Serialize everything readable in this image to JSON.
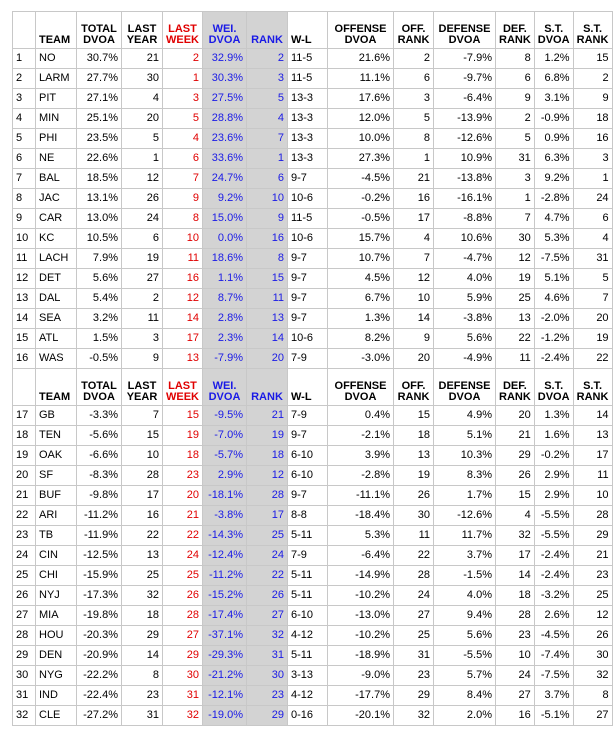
{
  "headers": {
    "rank": "",
    "team": "TEAM",
    "total_dvoa": [
      "TOTAL",
      "DVOA"
    ],
    "last_year": [
      "LAST",
      "YEAR"
    ],
    "last_week": [
      "LAST",
      "WEEK"
    ],
    "wei_dvoa": [
      "WEI.",
      "DVOA"
    ],
    "wei_rank": "RANK",
    "wl": "W-L",
    "offense_dvoa": [
      "OFFENSE",
      "DVOA"
    ],
    "off_rank": [
      "OFF.",
      "RANK"
    ],
    "defense_dvoa": [
      "DEFENSE",
      "DVOA"
    ],
    "def_rank": [
      "DEF.",
      "RANK"
    ],
    "st_dvoa": [
      "S.T.",
      "DVOA"
    ],
    "st_rank": [
      "S.T.",
      "RANK"
    ]
  },
  "colors": {
    "last_week_text": "#e00000",
    "weighted_text": "#1a1ae6",
    "weighted_bg": "#d3d3d3",
    "grid": "#c8c8c8"
  },
  "rows": [
    [
      "1",
      "NO",
      "30.7%",
      "21",
      "2",
      "32.9%",
      "2",
      "11-5",
      "21.6%",
      "2",
      "-7.9%",
      "8",
      "1.2%",
      "15"
    ],
    [
      "2",
      "LARM",
      "27.7%",
      "30",
      "1",
      "30.3%",
      "3",
      "11-5",
      "11.1%",
      "6",
      "-9.7%",
      "6",
      "6.8%",
      "2"
    ],
    [
      "3",
      "PIT",
      "27.1%",
      "4",
      "3",
      "27.5%",
      "5",
      "13-3",
      "17.6%",
      "3",
      "-6.4%",
      "9",
      "3.1%",
      "9"
    ],
    [
      "4",
      "MIN",
      "25.1%",
      "20",
      "5",
      "28.8%",
      "4",
      "13-3",
      "12.0%",
      "5",
      "-13.9%",
      "2",
      "-0.9%",
      "18"
    ],
    [
      "5",
      "PHI",
      "23.5%",
      "5",
      "4",
      "23.6%",
      "7",
      "13-3",
      "10.0%",
      "8",
      "-12.6%",
      "5",
      "0.9%",
      "16"
    ],
    [
      "6",
      "NE",
      "22.6%",
      "1",
      "6",
      "33.6%",
      "1",
      "13-3",
      "27.3%",
      "1",
      "10.9%",
      "31",
      "6.3%",
      "3"
    ],
    [
      "7",
      "BAL",
      "18.5%",
      "12",
      "7",
      "24.7%",
      "6",
      "9-7",
      "-4.5%",
      "21",
      "-13.8%",
      "3",
      "9.2%",
      "1"
    ],
    [
      "8",
      "JAC",
      "13.1%",
      "26",
      "9",
      "9.2%",
      "10",
      "10-6",
      "-0.2%",
      "16",
      "-16.1%",
      "1",
      "-2.8%",
      "24"
    ],
    [
      "9",
      "CAR",
      "13.0%",
      "24",
      "8",
      "15.0%",
      "9",
      "11-5",
      "-0.5%",
      "17",
      "-8.8%",
      "7",
      "4.7%",
      "6"
    ],
    [
      "10",
      "KC",
      "10.5%",
      "6",
      "10",
      "0.0%",
      "16",
      "10-6",
      "15.7%",
      "4",
      "10.6%",
      "30",
      "5.3%",
      "4"
    ],
    [
      "11",
      "LACH",
      "7.9%",
      "19",
      "11",
      "18.6%",
      "8",
      "9-7",
      "10.7%",
      "7",
      "-4.7%",
      "12",
      "-7.5%",
      "31"
    ],
    [
      "12",
      "DET",
      "5.6%",
      "27",
      "16",
      "1.1%",
      "15",
      "9-7",
      "4.5%",
      "12",
      "4.0%",
      "19",
      "5.1%",
      "5"
    ],
    [
      "13",
      "DAL",
      "5.4%",
      "2",
      "12",
      "8.7%",
      "11",
      "9-7",
      "6.7%",
      "10",
      "5.9%",
      "25",
      "4.6%",
      "7"
    ],
    [
      "14",
      "SEA",
      "3.2%",
      "11",
      "14",
      "2.8%",
      "13",
      "9-7",
      "1.3%",
      "14",
      "-3.8%",
      "13",
      "-2.0%",
      "20"
    ],
    [
      "15",
      "ATL",
      "1.5%",
      "3",
      "17",
      "2.3%",
      "14",
      "10-6",
      "8.2%",
      "9",
      "5.6%",
      "22",
      "-1.2%",
      "19"
    ],
    [
      "16",
      "WAS",
      "-0.5%",
      "9",
      "13",
      "-7.9%",
      "20",
      "7-9",
      "-3.0%",
      "20",
      "-4.9%",
      "11",
      "-2.4%",
      "22"
    ],
    [
      "17",
      "GB",
      "-3.3%",
      "7",
      "15",
      "-9.5%",
      "21",
      "7-9",
      "0.4%",
      "15",
      "4.9%",
      "20",
      "1.3%",
      "14"
    ],
    [
      "18",
      "TEN",
      "-5.6%",
      "15",
      "19",
      "-7.0%",
      "19",
      "9-7",
      "-2.1%",
      "18",
      "5.1%",
      "21",
      "1.6%",
      "13"
    ],
    [
      "19",
      "OAK",
      "-6.6%",
      "10",
      "18",
      "-5.7%",
      "18",
      "6-10",
      "3.9%",
      "13",
      "10.3%",
      "29",
      "-0.2%",
      "17"
    ],
    [
      "20",
      "SF",
      "-8.3%",
      "28",
      "23",
      "2.9%",
      "12",
      "6-10",
      "-2.8%",
      "19",
      "8.3%",
      "26",
      "2.9%",
      "11"
    ],
    [
      "21",
      "BUF",
      "-9.8%",
      "17",
      "20",
      "-18.1%",
      "28",
      "9-7",
      "-11.1%",
      "26",
      "1.7%",
      "15",
      "2.9%",
      "10"
    ],
    [
      "22",
      "ARI",
      "-11.2%",
      "16",
      "21",
      "-3.8%",
      "17",
      "8-8",
      "-18.4%",
      "30",
      "-12.6%",
      "4",
      "-5.5%",
      "28"
    ],
    [
      "23",
      "TB",
      "-11.9%",
      "22",
      "22",
      "-14.3%",
      "25",
      "5-11",
      "5.3%",
      "11",
      "11.7%",
      "32",
      "-5.5%",
      "29"
    ],
    [
      "24",
      "CIN",
      "-12.5%",
      "13",
      "24",
      "-12.4%",
      "24",
      "7-9",
      "-6.4%",
      "22",
      "3.7%",
      "17",
      "-2.4%",
      "21"
    ],
    [
      "25",
      "CHI",
      "-15.9%",
      "25",
      "25",
      "-11.2%",
      "22",
      "5-11",
      "-14.9%",
      "28",
      "-1.5%",
      "14",
      "-2.4%",
      "23"
    ],
    [
      "26",
      "NYJ",
      "-17.3%",
      "32",
      "26",
      "-15.2%",
      "26",
      "5-11",
      "-10.2%",
      "24",
      "4.0%",
      "18",
      "-3.2%",
      "25"
    ],
    [
      "27",
      "MIA",
      "-19.8%",
      "18",
      "28",
      "-17.4%",
      "27",
      "6-10",
      "-13.0%",
      "27",
      "9.4%",
      "28",
      "2.6%",
      "12"
    ],
    [
      "28",
      "HOU",
      "-20.3%",
      "29",
      "27",
      "-37.1%",
      "32",
      "4-12",
      "-10.2%",
      "25",
      "5.6%",
      "23",
      "-4.5%",
      "26"
    ],
    [
      "29",
      "DEN",
      "-20.9%",
      "14",
      "29",
      "-29.3%",
      "31",
      "5-11",
      "-18.9%",
      "31",
      "-5.5%",
      "10",
      "-7.4%",
      "30"
    ],
    [
      "30",
      "NYG",
      "-22.2%",
      "8",
      "30",
      "-21.2%",
      "30",
      "3-13",
      "-9.0%",
      "23",
      "5.7%",
      "24",
      "-7.5%",
      "32"
    ],
    [
      "31",
      "IND",
      "-22.4%",
      "23",
      "31",
      "-12.1%",
      "23",
      "4-12",
      "-17.7%",
      "29",
      "8.4%",
      "27",
      "3.7%",
      "8"
    ],
    [
      "32",
      "CLE",
      "-27.2%",
      "31",
      "32",
      "-19.0%",
      "29",
      "0-16",
      "-20.1%",
      "32",
      "2.0%",
      "16",
      "-5.1%",
      "27"
    ]
  ]
}
